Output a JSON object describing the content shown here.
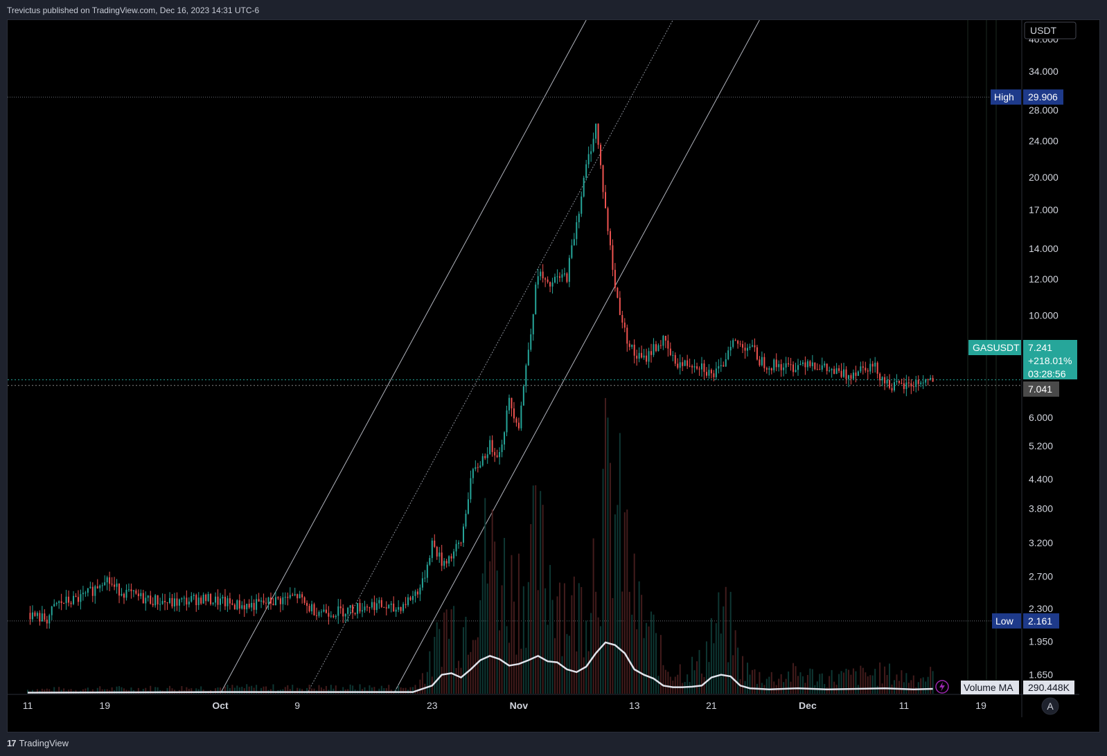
{
  "header": {
    "published_text": "Trevictus published on TradingView.com, Dec 16, 2023 14:31 UTC-6"
  },
  "footer": {
    "brand": "TradingView",
    "logo_glyph": "17"
  },
  "colors": {
    "up": "#26a69a",
    "down": "#ef5350",
    "background": "#000000",
    "panel": "#1e222d",
    "grid": "#2a2e39",
    "ma": "#e0e3eb",
    "high_tag": "#1e3a8a",
    "symbol_tag": "#26a69a",
    "prev_close_tag": "#4a4a4a"
  },
  "chart_data": {
    "type": "candlestick",
    "symbol": "GASUSDT",
    "currency": "USDT",
    "scale": "log",
    "ylim": [
      1.5,
      44
    ],
    "y_ticks": [
      "40.000",
      "34.000",
      "28.000",
      "24.000",
      "20.000",
      "17.000",
      "14.000",
      "12.000",
      "10.000",
      "6.000",
      "5.200",
      "4.400",
      "3.800",
      "3.200",
      "2.700",
      "2.300",
      "1.950",
      "1.650"
    ],
    "x_ticks": [
      {
        "label": "11",
        "bold": false,
        "day": 0
      },
      {
        "label": "19",
        "bold": false,
        "day": 8
      },
      {
        "label": "Oct",
        "bold": true,
        "day": 20
      },
      {
        "label": "9",
        "bold": false,
        "day": 28
      },
      {
        "label": "23",
        "bold": false,
        "day": 42
      },
      {
        "label": "Nov",
        "bold": true,
        "day": 51
      },
      {
        "label": "13",
        "bold": false,
        "day": 63
      },
      {
        "label": "21",
        "bold": false,
        "day": 71
      },
      {
        "label": "Dec",
        "bold": true,
        "day": 81
      },
      {
        "label": "11",
        "bold": false,
        "day": 91
      },
      {
        "label": "19",
        "bold": false,
        "day": 99
      }
    ],
    "high": {
      "label": "High",
      "value": "29.906",
      "y": 29.906
    },
    "low": {
      "label": "Low",
      "value": "2.161",
      "y": 2.161
    },
    "last": {
      "label": "GASUSDT",
      "price": "7.241",
      "change": "+218.01%",
      "countdown": "03:28:56",
      "y": 7.241
    },
    "prev_close": {
      "value": "7.041",
      "y": 7.041
    },
    "volume_ma": {
      "label": "Volume MA",
      "value": "290.448K"
    },
    "price_path": [
      [
        0,
        2.25
      ],
      [
        1,
        2.2
      ],
      [
        2,
        2.18
      ],
      [
        3,
        2.35
      ],
      [
        4,
        2.38
      ],
      [
        5,
        2.4
      ],
      [
        6,
        2.45
      ],
      [
        7,
        2.55
      ],
      [
        8,
        2.7
      ],
      [
        9,
        2.55
      ],
      [
        10,
        2.5
      ],
      [
        11,
        2.45
      ],
      [
        12,
        2.42
      ],
      [
        13,
        2.4
      ],
      [
        14,
        2.38
      ],
      [
        15,
        2.36
      ],
      [
        16,
        2.38
      ],
      [
        17,
        2.4
      ],
      [
        18,
        2.42
      ],
      [
        19,
        2.4
      ],
      [
        20,
        2.38
      ],
      [
        21,
        2.35
      ],
      [
        22,
        2.34
      ],
      [
        23,
        2.33
      ],
      [
        24,
        2.35
      ],
      [
        25,
        2.37
      ],
      [
        26,
        2.4
      ],
      [
        27,
        2.42
      ],
      [
        28,
        2.45
      ],
      [
        29,
        2.32
      ],
      [
        30,
        2.28
      ],
      [
        31,
        2.27
      ],
      [
        32,
        2.26
      ],
      [
        33,
        2.28
      ],
      [
        34,
        2.3
      ],
      [
        35,
        2.33
      ],
      [
        36,
        2.35
      ],
      [
        37,
        2.32
      ],
      [
        38,
        2.28
      ],
      [
        39,
        2.35
      ],
      [
        40,
        2.45
      ],
      [
        41,
        2.6
      ],
      [
        42,
        3.2
      ],
      [
        43,
        2.9
      ],
      [
        44,
        3.0
      ],
      [
        45,
        3.2
      ],
      [
        46,
        4.4
      ],
      [
        47,
        4.8
      ],
      [
        48,
        5.2
      ],
      [
        49,
        5.0
      ],
      [
        50,
        6.5
      ],
      [
        51,
        5.8
      ],
      [
        52,
        8.5
      ],
      [
        53,
        12.5
      ],
      [
        54,
        11.5
      ],
      [
        55,
        12.0
      ],
      [
        56,
        12.2
      ],
      [
        57,
        16.0
      ],
      [
        58,
        21.0
      ],
      [
        59,
        26.0
      ],
      [
        60,
        17.0
      ],
      [
        61,
        11.5
      ],
      [
        62,
        9.2
      ],
      [
        63,
        8.2
      ],
      [
        64,
        8.0
      ],
      [
        65,
        8.5
      ],
      [
        66,
        8.8
      ],
      [
        67,
        8.0
      ],
      [
        68,
        7.8
      ],
      [
        69,
        7.9
      ],
      [
        70,
        7.8
      ],
      [
        71,
        7.4
      ],
      [
        72,
        7.6
      ],
      [
        73,
        8.8
      ],
      [
        74,
        8.6
      ],
      [
        75,
        8.6
      ],
      [
        76,
        8.0
      ],
      [
        77,
        7.8
      ],
      [
        78,
        7.8
      ],
      [
        79,
        7.7
      ],
      [
        80,
        7.8
      ],
      [
        81,
        8.0
      ],
      [
        82,
        7.8
      ],
      [
        83,
        7.6
      ],
      [
        84,
        7.5
      ],
      [
        85,
        7.4
      ],
      [
        86,
        7.6
      ],
      [
        87,
        7.8
      ],
      [
        88,
        7.7
      ],
      [
        89,
        7.2
      ],
      [
        90,
        7.0
      ],
      [
        91,
        7.0
      ],
      [
        92,
        7.1
      ],
      [
        93,
        7.2
      ],
      [
        94,
        7.24
      ]
    ],
    "volume_ma_path": [
      [
        0,
        0.02
      ],
      [
        20,
        0.03
      ],
      [
        40,
        0.03
      ],
      [
        42,
        0.15
      ],
      [
        43,
        0.35
      ],
      [
        44,
        0.38
      ],
      [
        45,
        0.3
      ],
      [
        46,
        0.45
      ],
      [
        47,
        0.62
      ],
      [
        48,
        0.7
      ],
      [
        49,
        0.64
      ],
      [
        50,
        0.52
      ],
      [
        51,
        0.55
      ],
      [
        52,
        0.62
      ],
      [
        53,
        0.7
      ],
      [
        54,
        0.6
      ],
      [
        55,
        0.58
      ],
      [
        56,
        0.45
      ],
      [
        57,
        0.4
      ],
      [
        58,
        0.5
      ],
      [
        59,
        0.75
      ],
      [
        60,
        0.95
      ],
      [
        61,
        0.9
      ],
      [
        62,
        0.75
      ],
      [
        63,
        0.45
      ],
      [
        64,
        0.35
      ],
      [
        65,
        0.28
      ],
      [
        66,
        0.15
      ],
      [
        67,
        0.12
      ],
      [
        68,
        0.12
      ],
      [
        69,
        0.13
      ],
      [
        70,
        0.15
      ],
      [
        71,
        0.3
      ],
      [
        72,
        0.35
      ],
      [
        73,
        0.32
      ],
      [
        74,
        0.15
      ],
      [
        75,
        0.1
      ],
      [
        77,
        0.08
      ],
      [
        80,
        0.1
      ],
      [
        83,
        0.08
      ],
      [
        86,
        0.09
      ],
      [
        89,
        0.1
      ],
      [
        92,
        0.08
      ],
      [
        94,
        0.09
      ]
    ],
    "channel_lines": [
      {
        "x1": 20,
        "y1": 1.5,
        "x2": 58,
        "y2": 44
      },
      {
        "x1": 29,
        "y1": 1.5,
        "x2": 67,
        "y2": 44
      },
      {
        "x1": 38,
        "y1": 1.5,
        "x2": 76,
        "y2": 44
      }
    ]
  },
  "axis_labels": {
    "currency_button": "USDT",
    "auto_button": "A"
  }
}
